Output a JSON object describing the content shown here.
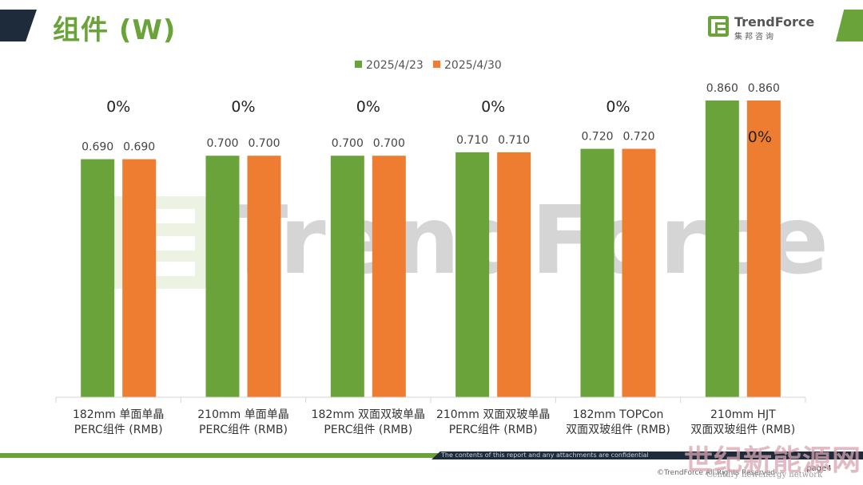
{
  "page_title": "组件 (W)",
  "brand": {
    "name": "TrendForce",
    "sub": "集邦咨询"
  },
  "colors": {
    "series1": "#6aa33a",
    "series2": "#ee7d31",
    "accent": "#6aa33a",
    "dark": "#1e2b3a"
  },
  "footer": {
    "notice": "The contents of this report and any attachments are confidential",
    "copyright": "©TrendForce All Rights Reserved",
    "page_tag": "page4"
  },
  "watermark": {
    "text": "TrendForce",
    "bottom_text": "世纪新能源网",
    "bottom_sub": "Century newenergy network"
  },
  "chart_data": {
    "type": "bar",
    "categories": [
      [
        "182mm 单面单晶",
        "PERC组件 (RMB)"
      ],
      [
        "210mm 单面单晶",
        "PERC组件 (RMB)"
      ],
      [
        "182mm 双面双玻单晶",
        "PERC组件 (RMB)"
      ],
      [
        "210mm 双面双玻单晶",
        "PERC组件 (RMB)"
      ],
      [
        "182mm TOPCon",
        "双面双玻组件 (RMB)"
      ],
      [
        "210mm HJT",
        "双面双玻组件 (RMB)"
      ]
    ],
    "series": [
      {
        "name": "2025/4/23",
        "values": [
          0.69,
          0.7,
          0.7,
          0.71,
          0.72,
          0.86
        ]
      },
      {
        "name": "2025/4/30",
        "values": [
          0.69,
          0.7,
          0.7,
          0.71,
          0.72,
          0.86
        ]
      }
    ],
    "value_labels": [
      [
        "0.690",
        "0.700",
        "0.700",
        "0.710",
        "0.720",
        "0.860"
      ],
      [
        "0.690",
        "0.700",
        "0.700",
        "0.710",
        "0.720",
        "0.860"
      ]
    ],
    "change_labels": [
      "0%",
      "0%",
      "0%",
      "0%",
      "0%",
      "0%"
    ],
    "ylim": [
      0,
      0.86
    ],
    "legend": "top-center",
    "grid": false
  }
}
